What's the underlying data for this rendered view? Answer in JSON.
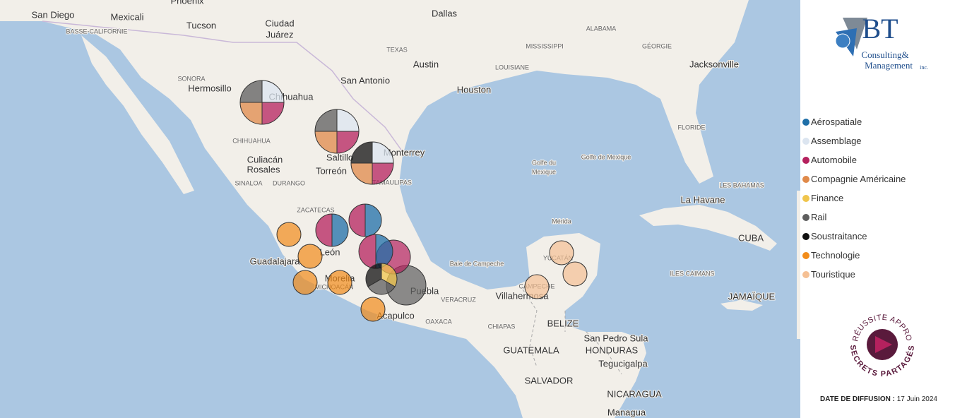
{
  "map": {
    "labels": [
      "San Diego",
      "Mexicali",
      "Phoenix",
      "Ciudad",
      "Juárez",
      "Dallas",
      "Tucson",
      "BASSE-CALIFORNIE",
      "TEXAS",
      "MISSISSIPPI",
      "ALABAMA",
      "GÉORGIE",
      "Austin",
      "LOUISIANE",
      "Jacksonville",
      "San Antonio",
      "Houston",
      "SONORA",
      "Hermosillo",
      "Chihuahua",
      "FLORIDE",
      "CHIHUAHUA",
      "Monterrey",
      "Golfe de Mexique",
      "Golfe du",
      "Mexique",
      "Saltillo",
      "Culiacán",
      "Rosales",
      "Torreón",
      "LES BAHAMAS",
      "SINALOA",
      "DURANGO",
      "TAMAULIPAS",
      "La Havane",
      "ZACATECAS",
      "CUBA",
      "Mérida",
      "León",
      "Guadalajara",
      "Baie de Campeche",
      "YUCATÁN",
      "ILES CAIMANS",
      "Puebla",
      "CAMPECHE",
      "Villahermosa",
      "VERACRUZ",
      "JAMAÏQUE",
      "Acapulco",
      "OAXACA",
      "CHIAPAS",
      "BELIZE",
      "San Pedro Sula",
      "GUATEMALA",
      "HONDURAS",
      "Tegucigalpa",
      "SALVADOR",
      "NICARAGUA",
      "Managua",
      "Morelia",
      "MICHOACÁN"
    ]
  },
  "logo": {
    "initials": "BT",
    "line1": "Consulting&",
    "line2": "Management",
    "suffix": "inc."
  },
  "legend": [
    {
      "name": "Aérospatiale",
      "color": "#1f6fa8"
    },
    {
      "name": "Assemblage",
      "color": "#dce5f0"
    },
    {
      "name": "Automobile",
      "color": "#b5215e"
    },
    {
      "name": "Compagnie Américaine",
      "color": "#e08a4a"
    },
    {
      "name": "Finance",
      "color": "#f0c54c"
    },
    {
      "name": "Rail",
      "color": "#5e5e5e"
    },
    {
      "name": "Soustraitance",
      "color": "#111111"
    },
    {
      "name": "Technologie",
      "color": "#f28c1a"
    },
    {
      "name": "Touristique",
      "color": "#f5c094"
    }
  ],
  "badge": {
    "top": "RÉUSSITE APPRO",
    "bottom": "SECRETS PARTAGÉS"
  },
  "footer": {
    "label": "DATE DE DIFFUSION :",
    "date": "17 Juin 2024"
  }
}
